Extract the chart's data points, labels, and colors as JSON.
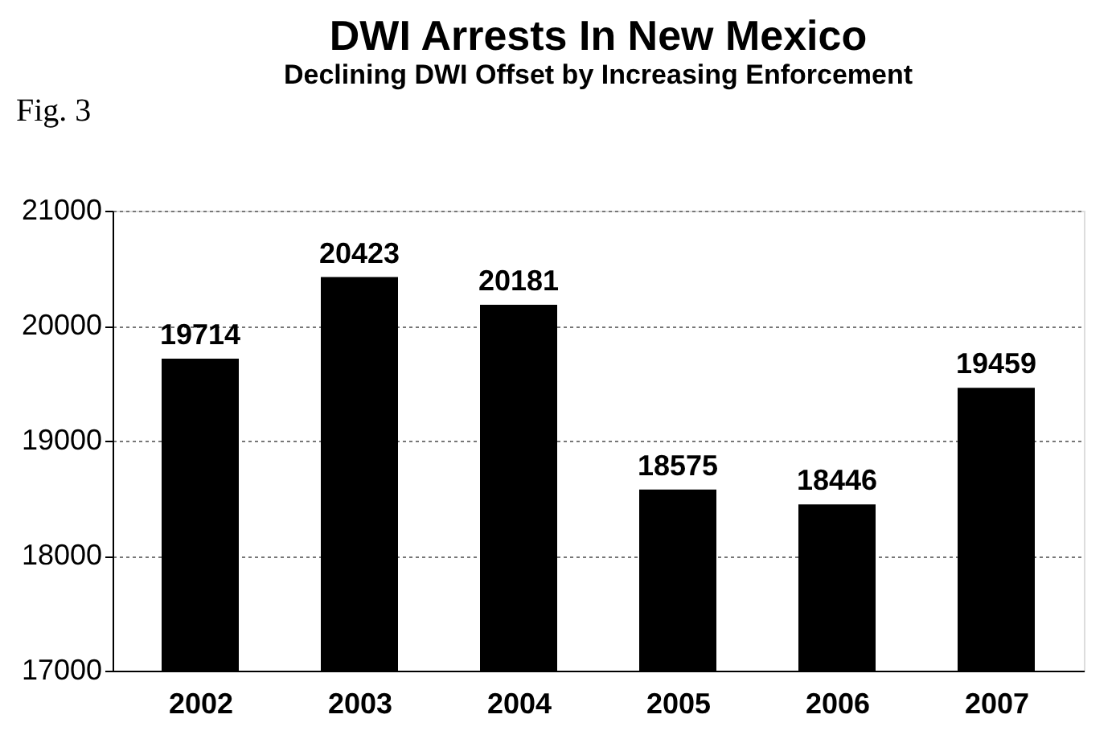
{
  "chart_data": {
    "type": "bar",
    "title": "DWI Arrests In New Mexico",
    "subtitle": "Declining DWI Offset by Increasing Enforcement",
    "annotations": [
      "Fig. 3"
    ],
    "categories": [
      "2002",
      "2003",
      "2004",
      "2005",
      "2006",
      "2007"
    ],
    "values": [
      19714,
      20423,
      20181,
      18575,
      18446,
      19459
    ],
    "color": "#000000",
    "ylim": [
      17000,
      21000
    ],
    "yticks": [
      17000,
      18000,
      19000,
      20000,
      21000
    ],
    "grid": "y",
    "data_labels": true
  }
}
